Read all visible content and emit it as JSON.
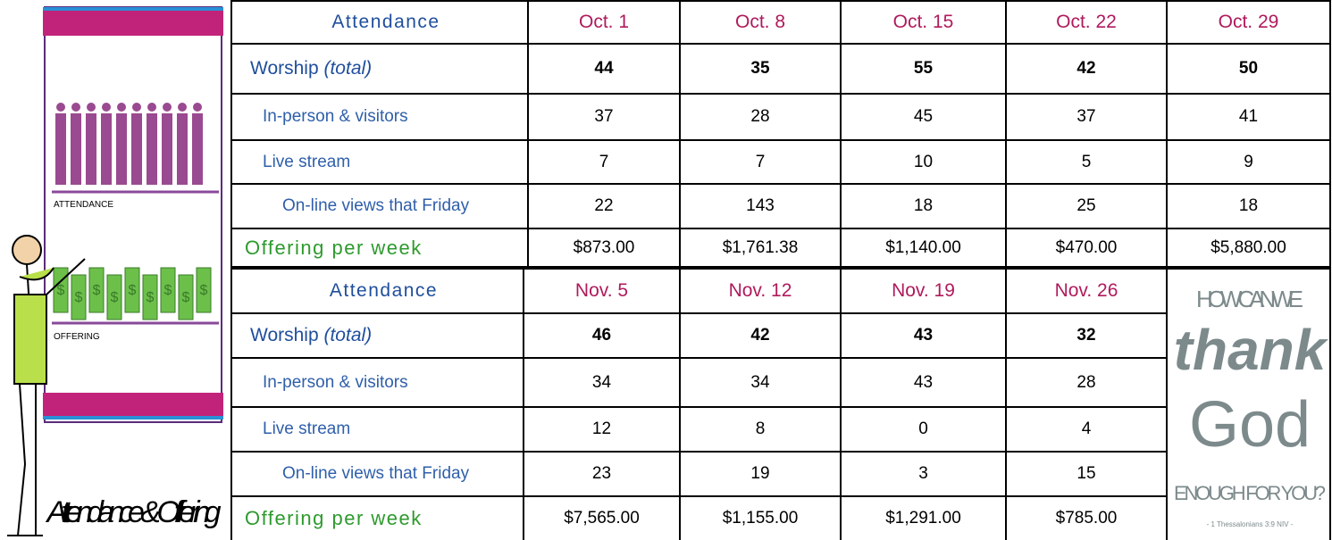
{
  "illustration": {
    "attendance_label": "ATTENDANCE",
    "offering_label": "OFFERING",
    "dollar_sign": "$",
    "caption": "Attendance & Offering"
  },
  "tables": [
    {
      "header": [
        "Attendance",
        "Oct. 1",
        "Oct. 8",
        "Oct. 15",
        "Oct. 22",
        "Oct. 29"
      ],
      "rows": [
        {
          "label": "Worship",
          "note": "(total)",
          "values": [
            44,
            35,
            55,
            42,
            50
          ]
        },
        {
          "label": "In-person & visitors",
          "values": [
            37,
            28,
            45,
            37,
            41
          ]
        },
        {
          "label": "Live stream",
          "values": [
            7,
            7,
            10,
            5,
            9
          ]
        },
        {
          "label": "On-line views that Friday",
          "values": [
            22,
            143,
            18,
            25,
            18
          ]
        },
        {
          "label": "Offering per week",
          "values": [
            "$873.00",
            "$1,761.38",
            "$1,140.00",
            "$470.00",
            "$5,880.00"
          ]
        }
      ]
    },
    {
      "header": [
        "Attendance",
        "Nov. 5",
        "Nov. 12",
        "Nov. 19",
        "Nov. 26"
      ],
      "rows": [
        {
          "label": "Worship",
          "note": "(total)",
          "values": [
            46,
            42,
            43,
            32
          ]
        },
        {
          "label": "In-person & visitors",
          "values": [
            34,
            34,
            43,
            28
          ]
        },
        {
          "label": "Live stream",
          "values": [
            12,
            8,
            0,
            4
          ]
        },
        {
          "label": "On-line views that Friday",
          "values": [
            23,
            19,
            3,
            15
          ]
        },
        {
          "label": "Offering per week",
          "values": [
            "$7,565.00",
            "$1,155.00",
            "$1,291.00",
            "$785.00"
          ]
        }
      ]
    }
  ],
  "quote": {
    "line1": "HOW CAN WE",
    "line2": "thank",
    "line3": "God",
    "line4": "ENOUGH FOR YOU?",
    "source": "- 1 Thessalonians 3:9 NIV -"
  }
}
